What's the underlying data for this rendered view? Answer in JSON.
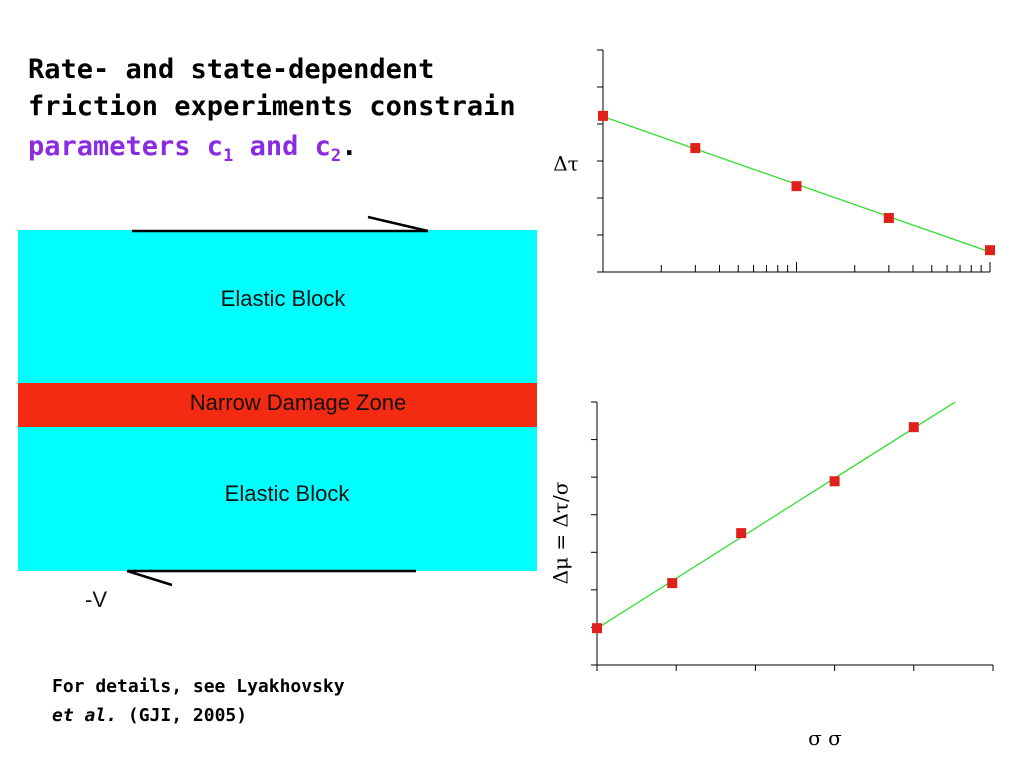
{
  "header": {
    "line1": "Rate- and state-dependent",
    "line2": "friction experiments constrain",
    "highlight": [
      "parameters c",
      "1",
      " and c",
      "2"
    ],
    "end": "."
  },
  "diagram": {
    "upper_block": "Elastic Block",
    "damage_zone": "Narrow Damage Zone",
    "lower_block": "Elastic Block",
    "velocity": "-V"
  },
  "footnote": {
    "line1": "For details, see Lyakhovsky",
    "italic": "et al.",
    "rest": " (GJI, 2005)"
  },
  "chart_data": [
    {
      "type": "scatter",
      "ylabel": "Δτ",
      "x": [
        1,
        3,
        10,
        30,
        100
      ],
      "values": [
        4.22,
        3.35,
        2.32,
        1.46,
        0.59
      ],
      "color": "#e0201b",
      "line_color": "#33dd33",
      "xscale": "log",
      "xlim": [
        1,
        100
      ],
      "ylim": [
        0,
        6
      ],
      "xticks": [
        1,
        2,
        3,
        4,
        5,
        6,
        7,
        8,
        9,
        10,
        20,
        30,
        40,
        50,
        60,
        70,
        80,
        90,
        100
      ],
      "yticks": [
        0,
        1,
        2,
        3,
        4,
        5,
        6
      ]
    },
    {
      "type": "scatter",
      "ylabel": "Δμ = Δτ/σ",
      "xlabel": "σ σ",
      "x": [
        0,
        0.95,
        1.82,
        3,
        4
      ],
      "values": [
        0.98,
        2.18,
        3.51,
        4.89,
        6.33
      ],
      "color": "#e0201b",
      "line_color": "#33dd33",
      "xscale": "linear",
      "xlim": [
        0,
        5
      ],
      "ylim": [
        0,
        7
      ],
      "xticks": [
        0,
        1,
        2,
        3,
        4,
        5
      ],
      "yticks": [
        0,
        1,
        2,
        3,
        4,
        5,
        6,
        7
      ]
    }
  ]
}
